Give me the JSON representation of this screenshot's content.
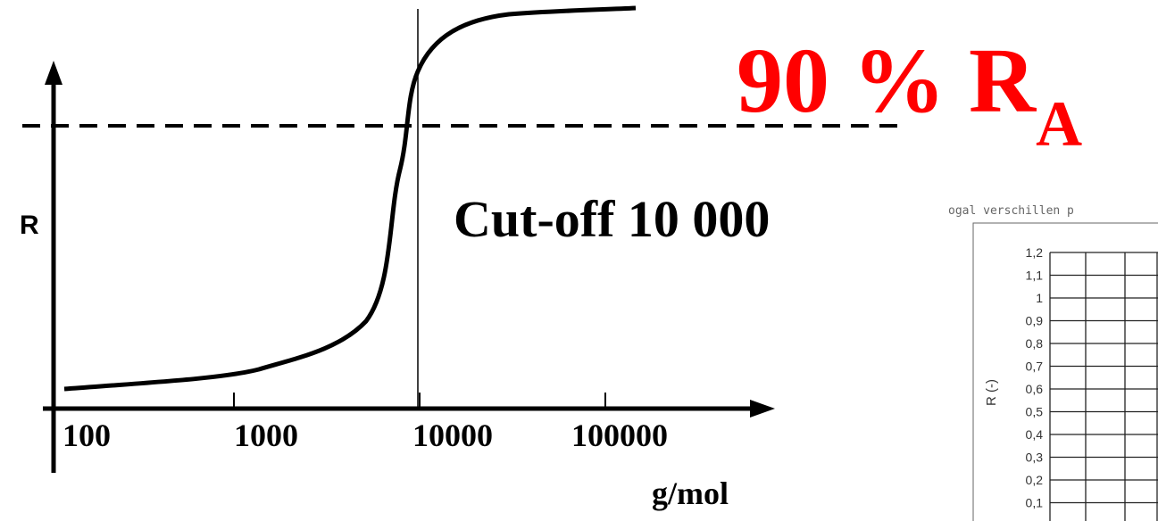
{
  "diagram": {
    "y_axis_label": "R",
    "x_tick_labels": [
      "100",
      "1000",
      "10000",
      "100000"
    ],
    "x_axis_label": "g/mol",
    "cutoff_label": "Cut-off 10 000",
    "threshold_label": {
      "main": "90 % R",
      "subscript": "A"
    },
    "scan": {
      "caption": "ogal verschillen p",
      "y_axis_label": "R (-)",
      "y_tick_labels": [
        "1,2",
        "1,1",
        "1",
        "0,9",
        "0,8",
        "0,7",
        "0,6",
        "0,5",
        "0,4",
        "0,3",
        "0,2",
        "0,1"
      ]
    }
  }
}
